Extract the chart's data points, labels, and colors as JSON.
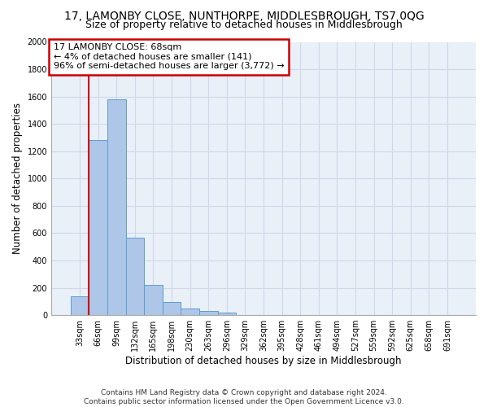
{
  "title": "17, LAMONBY CLOSE, NUNTHORPE, MIDDLESBROUGH, TS7 0QG",
  "subtitle": "Size of property relative to detached houses in Middlesbrough",
  "xlabel": "Distribution of detached houses by size in Middlesbrough",
  "ylabel": "Number of detached properties",
  "footer_line1": "Contains HM Land Registry data © Crown copyright and database right 2024.",
  "footer_line2": "Contains public sector information licensed under the Open Government Licence v3.0.",
  "categories": [
    "33sqm",
    "66sqm",
    "99sqm",
    "132sqm",
    "165sqm",
    "198sqm",
    "230sqm",
    "263sqm",
    "296sqm",
    "329sqm",
    "362sqm",
    "395sqm",
    "428sqm",
    "461sqm",
    "494sqm",
    "527sqm",
    "559sqm",
    "592sqm",
    "625sqm",
    "658sqm",
    "691sqm"
  ],
  "values": [
    140,
    1280,
    1580,
    565,
    220,
    95,
    50,
    28,
    18,
    0,
    0,
    0,
    0,
    0,
    0,
    0,
    0,
    0,
    0,
    0,
    0
  ],
  "bar_color": "#aec6e8",
  "bar_edge_color": "#5a9fd4",
  "annotation_line1": "17 LAMONBY CLOSE: 68sqm",
  "annotation_line2": "← 4% of detached houses are smaller (141)",
  "annotation_line3": "96% of semi-detached houses are larger (3,772) →",
  "annotation_box_color": "#cc0000",
  "annotation_box_bg": "#ffffff",
  "vline_x": 0.5,
  "vline_color": "#cc0000",
  "ylim": [
    0,
    2000
  ],
  "yticks": [
    0,
    200,
    400,
    600,
    800,
    1000,
    1200,
    1400,
    1600,
    1800,
    2000
  ],
  "grid_color": "#d0d8e8",
  "bg_color": "#eaf0f8",
  "title_fontsize": 10,
  "subtitle_fontsize": 9,
  "tick_fontsize": 7,
  "ylabel_fontsize": 8.5,
  "xlabel_fontsize": 8.5,
  "footer_fontsize": 6.5
}
